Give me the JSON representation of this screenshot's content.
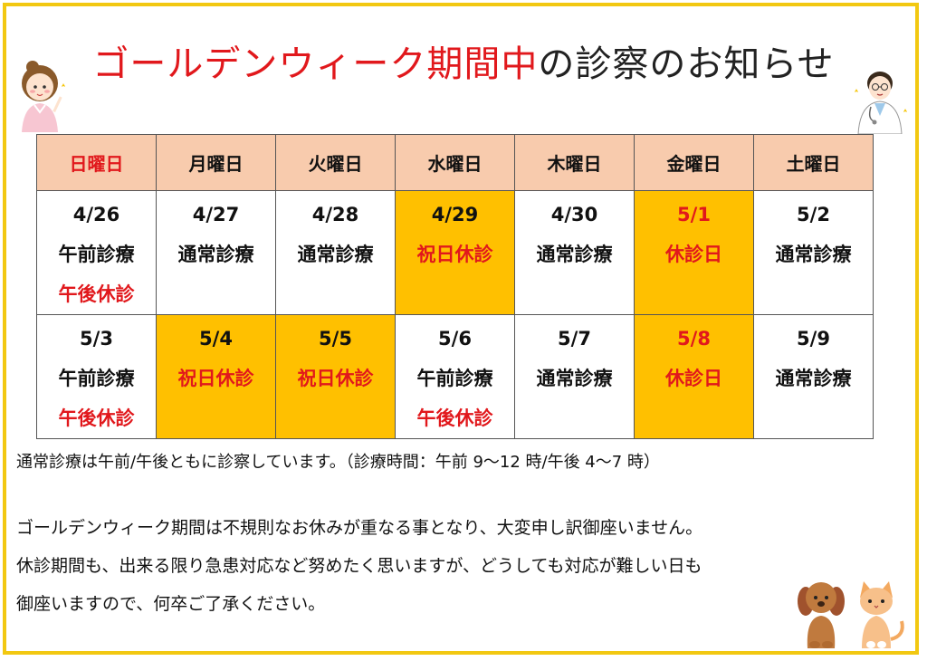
{
  "title": {
    "highlight": "ゴールデンウィーク期間中",
    "rest": "の診察のお知らせ"
  },
  "calendar": {
    "headers": [
      "日曜日",
      "月曜日",
      "火曜日",
      "水曜日",
      "木曜日",
      "金曜日",
      "土曜日"
    ],
    "weeks": [
      [
        {
          "date": "4/26",
          "lines": [
            {
              "text": "午前診療",
              "red": false
            },
            {
              "text": "午後休診",
              "red": true
            }
          ],
          "holiday": false,
          "date_red": false
        },
        {
          "date": "4/27",
          "lines": [
            {
              "text": "通常診療",
              "red": false
            }
          ],
          "holiday": false,
          "date_red": false
        },
        {
          "date": "4/28",
          "lines": [
            {
              "text": "通常診療",
              "red": false
            }
          ],
          "holiday": false,
          "date_red": false
        },
        {
          "date": "4/29",
          "lines": [
            {
              "text": "祝日休診",
              "red": true
            }
          ],
          "holiday": true,
          "date_red": false
        },
        {
          "date": "4/30",
          "lines": [
            {
              "text": "通常診療",
              "red": false
            }
          ],
          "holiday": false,
          "date_red": false
        },
        {
          "date": "5/1",
          "lines": [
            {
              "text": "休診日",
              "red": true
            }
          ],
          "holiday": true,
          "date_red": true
        },
        {
          "date": "5/2",
          "lines": [
            {
              "text": "通常診療",
              "red": false
            }
          ],
          "holiday": false,
          "date_red": false
        }
      ],
      [
        {
          "date": "5/3",
          "lines": [
            {
              "text": "午前診療",
              "red": false
            },
            {
              "text": "午後休診",
              "red": true
            }
          ],
          "holiday": false,
          "date_red": false
        },
        {
          "date": "5/4",
          "lines": [
            {
              "text": "祝日休診",
              "red": true
            }
          ],
          "holiday": true,
          "date_red": false
        },
        {
          "date": "5/5",
          "lines": [
            {
              "text": "祝日休診",
              "red": true
            }
          ],
          "holiday": true,
          "date_red": false
        },
        {
          "date": "5/6",
          "lines": [
            {
              "text": "午前診療",
              "red": false
            },
            {
              "text": "午後休診",
              "red": true
            }
          ],
          "holiday": false,
          "date_red": false
        },
        {
          "date": "5/7",
          "lines": [
            {
              "text": "通常診療",
              "red": false
            }
          ],
          "holiday": false,
          "date_red": false
        },
        {
          "date": "5/8",
          "lines": [
            {
              "text": "休診日",
              "red": true
            }
          ],
          "holiday": true,
          "date_red": true
        },
        {
          "date": "5/9",
          "lines": [
            {
              "text": "通常診療",
              "red": false
            }
          ],
          "holiday": false,
          "date_red": false
        }
      ]
    ]
  },
  "note": "通常診療は午前/午後ともに診察しています。（診療時間：午前 9～12 時/午後 4～7 時）",
  "paragraph": [
    "ゴールデンウィーク期間は不規則なお休みが重なる事となり、大変申し訳御座いません。",
    "休診期間も、出来る限り急患対応など努めたく思いますが、どうしても対応が難しい日も",
    "御座いますので、何卒ご了承ください。"
  ],
  "colors": {
    "frame": "#f2c811",
    "header_bg": "#f8cbad",
    "holiday_bg": "#ffc000",
    "red": "#e1181c"
  },
  "illustrations": [
    "nurse-illustration",
    "doctor-illustration",
    "dog-illustration",
    "cat-illustration"
  ]
}
